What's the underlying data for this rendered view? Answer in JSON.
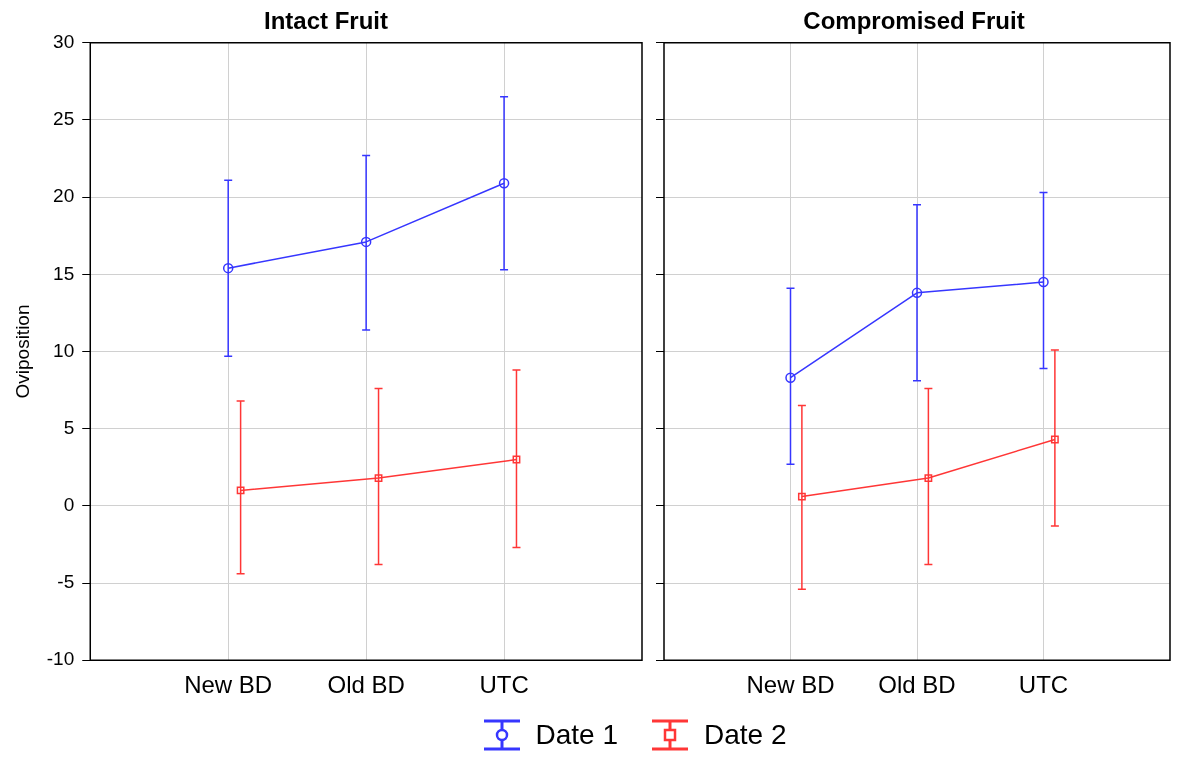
{
  "chart_data": [
    {
      "type": "line",
      "title": "Intact Fruit",
      "ylabel": "Oviposition",
      "categories": [
        "New BD",
        "Old BD",
        "UTC"
      ],
      "ylim": [
        -10,
        30
      ],
      "yticks": [
        -10,
        -5,
        0,
        5,
        10,
        15,
        20,
        25,
        30
      ],
      "grid": true,
      "series": [
        {
          "color": "#3636ff",
          "marker": "circle",
          "values": [
            15.4,
            17.1,
            20.9
          ],
          "errors": [
            [
              9.7,
              21.1
            ],
            [
              11.4,
              22.7
            ],
            [
              15.3,
              26.5
            ]
          ]
        },
        {
          "color": "#ff3636",
          "marker": "square",
          "values": [
            1.0,
            1.8,
            3.0
          ],
          "errors": [
            [
              -4.4,
              6.8
            ],
            [
              -3.8,
              7.6
            ],
            [
              -2.7,
              8.8
            ]
          ]
        }
      ]
    },
    {
      "type": "line",
      "title": "Compromised Fruit",
      "categories": [
        "New BD",
        "Old BD",
        "UTC"
      ],
      "ylim": [
        -10,
        30
      ],
      "yticks": [
        -10,
        -5,
        0,
        5,
        10,
        15,
        20,
        25,
        30
      ],
      "grid": true,
      "legend": "bottom",
      "tick_labels": "x",
      "series": [
        {
          "name": "Date 1",
          "color": "#3636ff",
          "marker": "circle",
          "values": [
            8.3,
            13.8,
            14.5
          ],
          "errors": [
            [
              2.7,
              14.1
            ],
            [
              8.1,
              19.5
            ],
            [
              8.9,
              20.3
            ]
          ]
        },
        {
          "name": "Date 2",
          "color": "#ff3636",
          "marker": "square",
          "values": [
            0.6,
            1.8,
            4.3
          ],
          "errors": [
            [
              -5.4,
              6.5
            ],
            [
              -3.8,
              7.6
            ],
            [
              -1.3,
              10.1
            ]
          ]
        }
      ]
    }
  ]
}
